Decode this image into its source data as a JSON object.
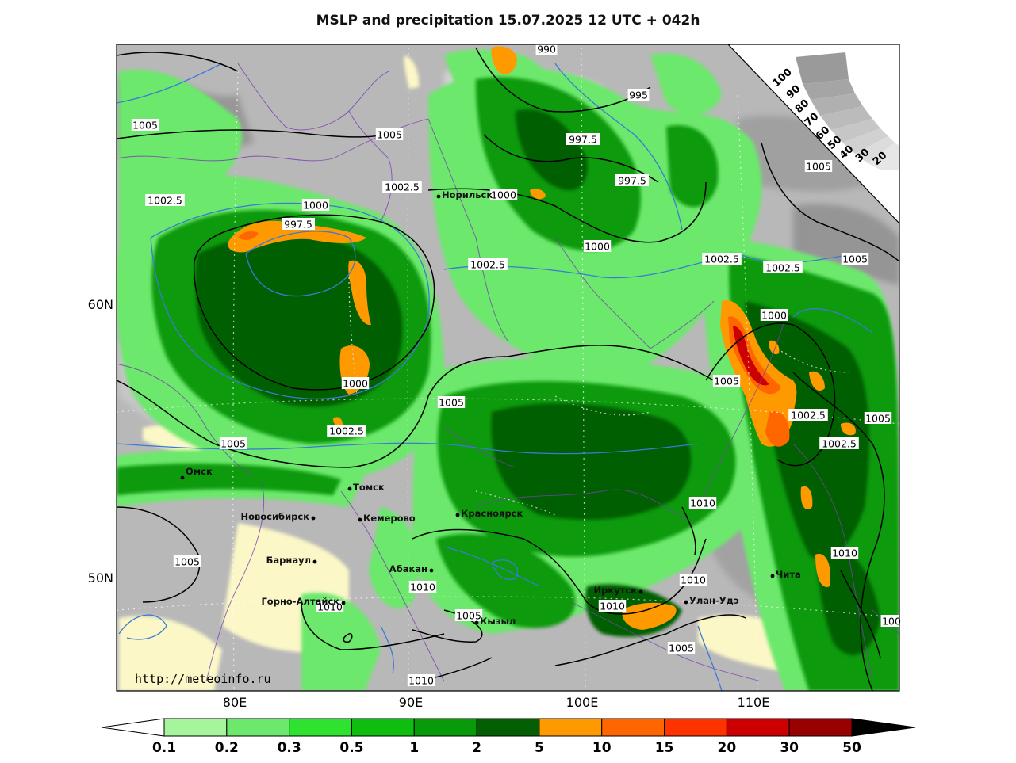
{
  "title": "MSLP and precipitation 15.07.2025 12 UTC + 042h",
  "website": "http://meteoinfo.ru",
  "lon_labels": [
    "80E",
    "90E",
    "100E",
    "110E"
  ],
  "lat_labels": [
    "60N",
    "50N"
  ],
  "cloud_scale": {
    "labels": [
      "100",
      "90",
      "80",
      "70",
      "60",
      "50",
      "40",
      "30",
      "20"
    ]
  },
  "legend": {
    "values": [
      "0.1",
      "0.2",
      "0.3",
      "0.5",
      "1",
      "2",
      "5",
      "10",
      "15",
      "20",
      "30",
      "50"
    ],
    "colors": [
      "#ffffff",
      "#a6f59c",
      "#6ce86c",
      "#2fe22f",
      "#0ebd0e",
      "#089a08",
      "#045f04",
      "#ff9900",
      "#ff6600",
      "#ff3300",
      "#cc0000",
      "#990000",
      "#000000"
    ]
  },
  "isobars": [
    {
      "text": "990"
    },
    {
      "text": "995"
    },
    {
      "text": "997.5"
    },
    {
      "text": "997.5"
    },
    {
      "text": "1005"
    },
    {
      "text": "1005"
    },
    {
      "text": "1002.5"
    },
    {
      "text": "1000"
    },
    {
      "text": "1002.5"
    },
    {
      "text": "1000"
    },
    {
      "text": "997.5"
    },
    {
      "text": "1000"
    },
    {
      "text": "1002.5"
    },
    {
      "text": "1005"
    },
    {
      "text": "1002.5"
    },
    {
      "text": "1002.5"
    },
    {
      "text": "1005"
    },
    {
      "text": "1000"
    },
    {
      "text": "1000"
    },
    {
      "text": "1005"
    },
    {
      "text": "1005"
    },
    {
      "text": "1002.5"
    },
    {
      "text": "1005"
    },
    {
      "text": "1002.5"
    },
    {
      "text": "1005"
    },
    {
      "text": "1002.5"
    },
    {
      "text": "1010"
    },
    {
      "text": "1005"
    },
    {
      "text": "1010"
    },
    {
      "text": "1010"
    },
    {
      "text": "1010"
    },
    {
      "text": "1010"
    },
    {
      "text": "1010"
    },
    {
      "text": "1005"
    },
    {
      "text": "1005"
    },
    {
      "text": "1010"
    },
    {
      "text": "100"
    }
  ],
  "cities": [
    {
      "name": "Норильск"
    },
    {
      "name": "Омск"
    },
    {
      "name": "Томск"
    },
    {
      "name": "Новосибирск"
    },
    {
      "name": "Кемерово"
    },
    {
      "name": "Красноярск"
    },
    {
      "name": "Барнаул"
    },
    {
      "name": "Абакан"
    },
    {
      "name": "Горно-Алтайск"
    },
    {
      "name": "Кызыл"
    },
    {
      "name": "Иркутск"
    },
    {
      "name": "Улан-Удэ"
    },
    {
      "name": "Чита"
    }
  ]
}
